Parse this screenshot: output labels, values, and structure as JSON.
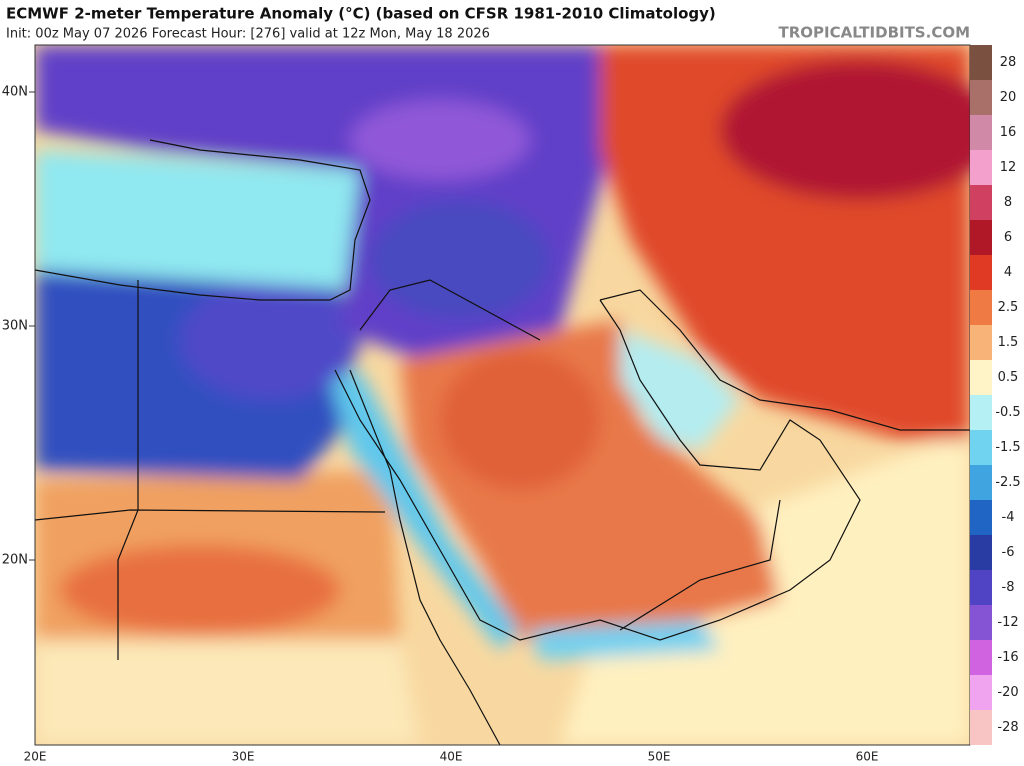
{
  "header": {
    "title": "ECMWF 2-meter Temperature Anomaly (°C) (based on CFSR 1981-2010 Climatology)",
    "subtitle": "Init: 00z May 07 2026   Forecast Hour: [276]   valid at 12z Mon, May 18 2026",
    "credit": "TROPICALTIDBITS.COM"
  },
  "map": {
    "lat_labels": [
      "40N",
      "30N",
      "20N"
    ],
    "lon_labels": [
      "20E",
      "30E",
      "40E",
      "50E",
      "60E"
    ]
  },
  "colorbar": {
    "items": [
      {
        "label": "28",
        "color": "#7a5040"
      },
      {
        "label": "20",
        "color": "#a87068"
      },
      {
        "label": "16",
        "color": "#d08aa8"
      },
      {
        "label": "12",
        "color": "#f4a0cc"
      },
      {
        "label": "8",
        "color": "#d04060"
      },
      {
        "label": "6",
        "color": "#b01828"
      },
      {
        "label": "4",
        "color": "#e03a24"
      },
      {
        "label": "2.5",
        "color": "#f07a44"
      },
      {
        "label": "1.5",
        "color": "#f8b478"
      },
      {
        "label": "0.5",
        "color": "#fff4c8"
      },
      {
        "label": "-0.5",
        "color": "#b4f0f4"
      },
      {
        "label": "-1.5",
        "color": "#70d4f0"
      },
      {
        "label": "-2.5",
        "color": "#40a4e0"
      },
      {
        "label": "-4",
        "color": "#2064c4"
      },
      {
        "label": "-6",
        "color": "#283ca4"
      },
      {
        "label": "-8",
        "color": "#5044c4"
      },
      {
        "label": "-12",
        "color": "#8454d4"
      },
      {
        "label": "-16",
        "color": "#d064e0"
      },
      {
        "label": "-20",
        "color": "#f0a4f0"
      },
      {
        "label": "-28",
        "color": "#f8c4c4"
      }
    ]
  }
}
